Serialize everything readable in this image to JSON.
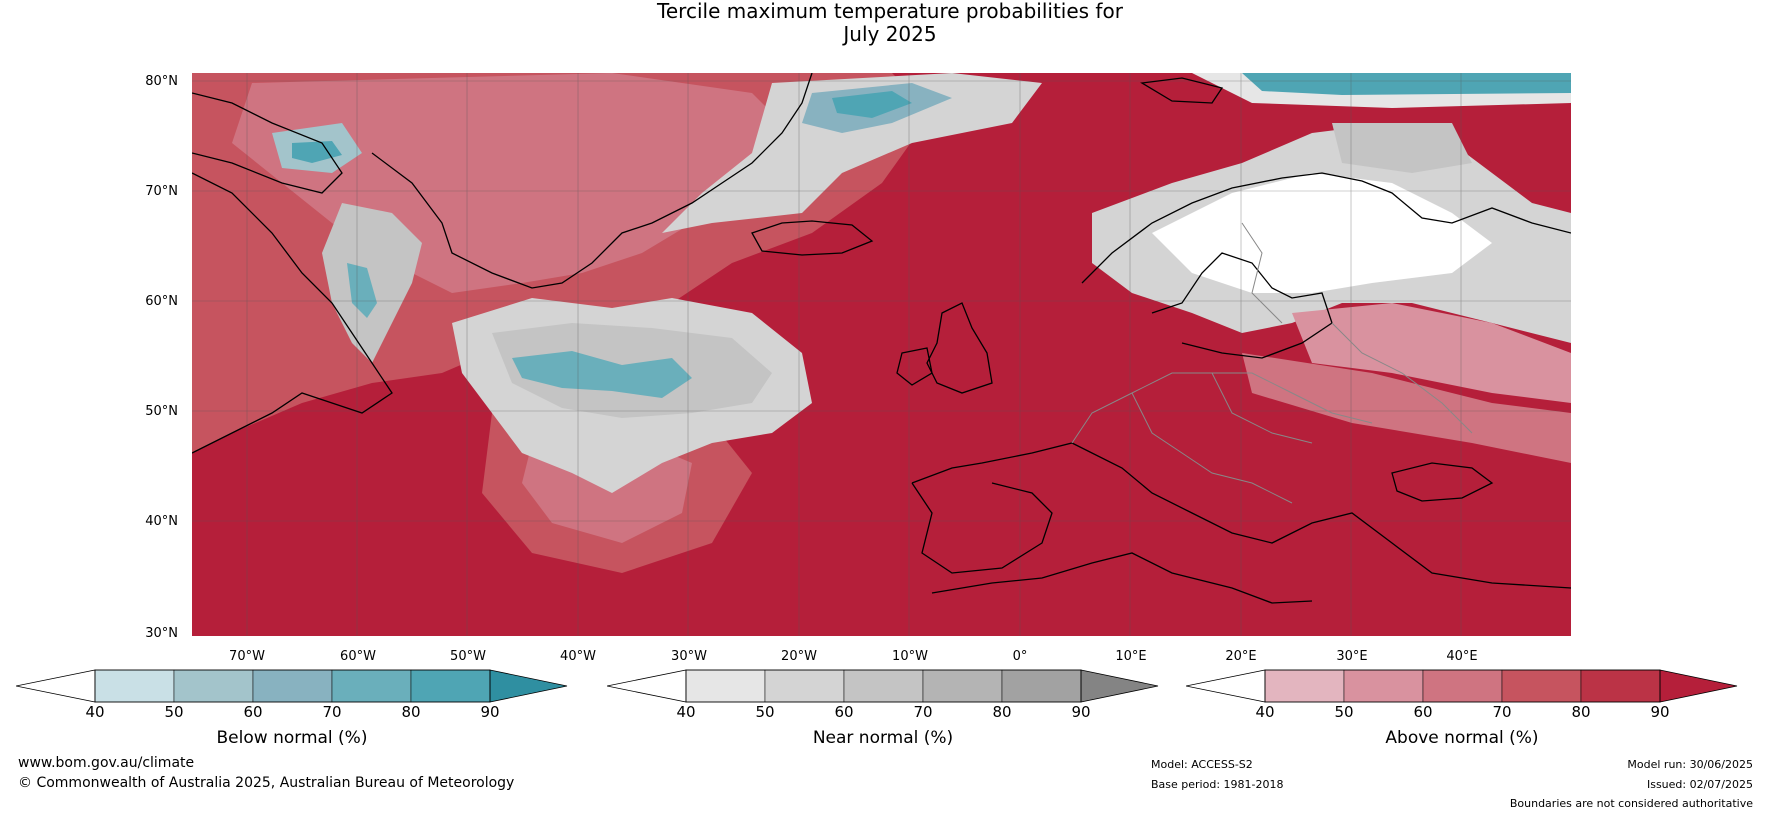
{
  "title": {
    "line1": "Tercile maximum temperature probabilities for",
    "line2": "July 2025"
  },
  "map": {
    "lat_labels": [
      "80°N",
      "70°N",
      "60°N",
      "50°N",
      "40°N",
      "30°N"
    ],
    "lon_labels": [
      "70°W",
      "60°W",
      "50°W",
      "40°W",
      "30°W",
      "20°W",
      "10°W",
      "0°",
      "10°E",
      "20°E",
      "30°E",
      "40°E"
    ]
  },
  "legend": {
    "below": {
      "title": "Below normal (%)",
      "ticks": [
        "40",
        "50",
        "60",
        "70",
        "80",
        "90"
      ],
      "colors": [
        "#c9e0e6",
        "#a3c4cb",
        "#88b2c0",
        "#6aafbb",
        "#4fa5b4",
        "#2f8fa1"
      ]
    },
    "near": {
      "title": "Near normal (%)",
      "ticks": [
        "40",
        "50",
        "60",
        "70",
        "80",
        "90"
      ],
      "colors": [
        "#e6e6e6",
        "#d4d4d4",
        "#c4c4c4",
        "#b4b4b4",
        "#a2a2a2",
        "#848484"
      ]
    },
    "above": {
      "title": "Above normal (%)",
      "ticks": [
        "40",
        "50",
        "60",
        "70",
        "80",
        "90"
      ],
      "colors": [
        "#e3b5bf",
        "#d9929f",
        "#cf7481",
        "#c6545f",
        "#bb3346",
        "#b51f3a"
      ]
    }
  },
  "footer": {
    "website": "www.bom.gov.au/climate",
    "copyright": "© Commonwealth of Australia 2025, Australian Bureau of Meteorology",
    "model": "Model: ACCESS-S2",
    "base_period": "Base period: 1981-2018",
    "model_run": "Model run: 30/06/2025",
    "issued": "Issued: 02/07/2025",
    "disclaimer": "Boundaries are not considered authoritative"
  }
}
